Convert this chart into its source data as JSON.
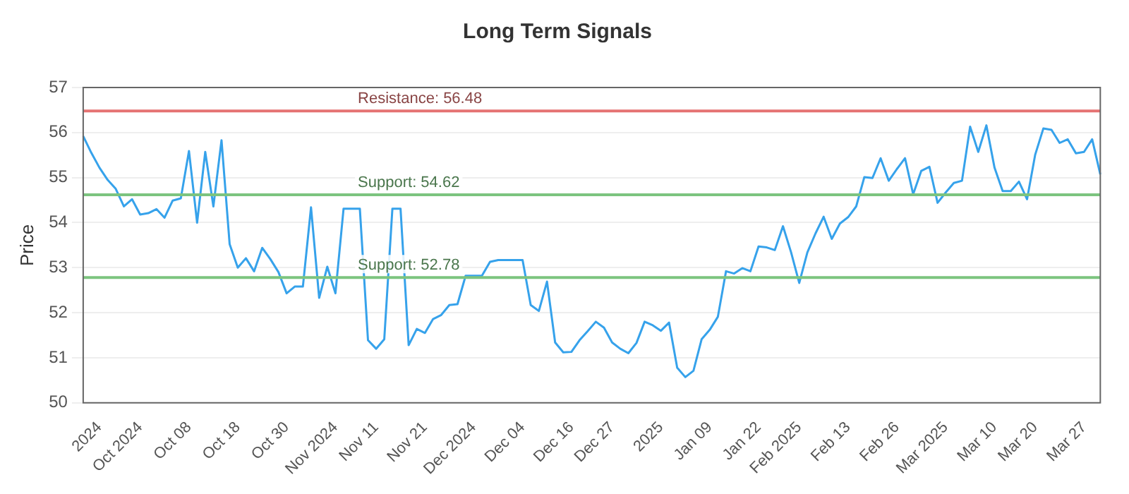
{
  "chart_data": {
    "type": "line",
    "title": "Long Term Signals",
    "ylabel": "Price",
    "categories": [
      null,
      null,
      "2024",
      null,
      null,
      null,
      null,
      "Oct 2024",
      null,
      null,
      null,
      null,
      null,
      "Oct 08",
      null,
      null,
      null,
      null,
      null,
      "Oct 18",
      null,
      null,
      null,
      null,
      null,
      "Oct 30",
      null,
      null,
      null,
      null,
      null,
      "Nov 2024",
      null,
      null,
      null,
      null,
      "Nov 11",
      null,
      null,
      null,
      null,
      null,
      "Nov 21",
      null,
      null,
      null,
      null,
      null,
      "Dec 2024",
      null,
      null,
      null,
      null,
      null,
      "Dec 04",
      null,
      null,
      null,
      null,
      null,
      "Dec 16",
      null,
      null,
      null,
      null,
      "Dec 27",
      null,
      null,
      null,
      null,
      null,
      "2025",
      null,
      null,
      null,
      null,
      null,
      "Jan 09",
      null,
      null,
      null,
      null,
      null,
      "Jan 22",
      null,
      null,
      null,
      null,
      "Feb 2025",
      null,
      null,
      null,
      null,
      null,
      "Feb 13",
      null,
      null,
      null,
      null,
      null,
      "Feb 26",
      null,
      null,
      null,
      null,
      null,
      "Mar 2025",
      null,
      null,
      null,
      null,
      null,
      "Mar 10",
      null,
      null,
      null,
      null,
      "Mar 20",
      null,
      null,
      null,
      null,
      null,
      "Mar 27",
      null,
      null
    ],
    "series": [
      {
        "color": "#36a2eb",
        "values": [
          55.92,
          55.55,
          55.22,
          54.95,
          54.75,
          54.36,
          54.52,
          54.18,
          54.21,
          54.3,
          54.11,
          54.49,
          54.54,
          55.59,
          54.0,
          55.57,
          54.36,
          55.83,
          53.52,
          53.0,
          53.21,
          52.92,
          53.44,
          53.19,
          52.9,
          52.43,
          52.58,
          52.58,
          54.34,
          52.33,
          53.02,
          52.43,
          54.31,
          54.31,
          54.31,
          51.39,
          51.2,
          51.41,
          54.31,
          54.31,
          51.28,
          51.64,
          51.55,
          51.86,
          51.95,
          52.17,
          52.19,
          52.82,
          52.82,
          52.82,
          53.13,
          53.17,
          53.17,
          53.17,
          53.17,
          52.17,
          52.04,
          52.69,
          51.34,
          51.12,
          51.13,
          51.39,
          51.59,
          51.8,
          51.67,
          51.34,
          51.2,
          51.1,
          51.33,
          51.8,
          51.72,
          51.6,
          51.78,
          50.78,
          50.57,
          50.71,
          51.41,
          51.62,
          51.91,
          52.92,
          52.87,
          52.99,
          52.92,
          53.47,
          53.45,
          53.39,
          53.92,
          53.34,
          52.66,
          53.34,
          53.76,
          54.13,
          53.64,
          53.98,
          54.12,
          54.36,
          55.01,
          54.99,
          55.43,
          54.93,
          55.19,
          55.43,
          54.63,
          55.15,
          55.24,
          54.44,
          54.67,
          54.88,
          54.93,
          56.13,
          55.57,
          56.16,
          55.22,
          54.7,
          54.7,
          54.91,
          54.52,
          55.51,
          56.09,
          56.06,
          55.77,
          55.85,
          55.54,
          55.57,
          55.85,
          55.07
        ]
      }
    ],
    "ylim": [
      50,
      57
    ],
    "yticks": [
      50,
      51,
      52,
      53,
      54,
      55,
      56,
      57
    ],
    "grid": "y",
    "legend": false,
    "marker": "none",
    "line_style": "solid",
    "ref_lines": [
      {
        "axis": "y",
        "value": 56.48,
        "label": "Resistance: 56.48",
        "color": "#e57373"
      },
      {
        "axis": "y",
        "value": 54.62,
        "label": "Support: 54.62",
        "color": "#7cc47f"
      },
      {
        "axis": "y",
        "value": 52.78,
        "label": "Support: 52.78",
        "color": "#7cc47f"
      }
    ]
  }
}
